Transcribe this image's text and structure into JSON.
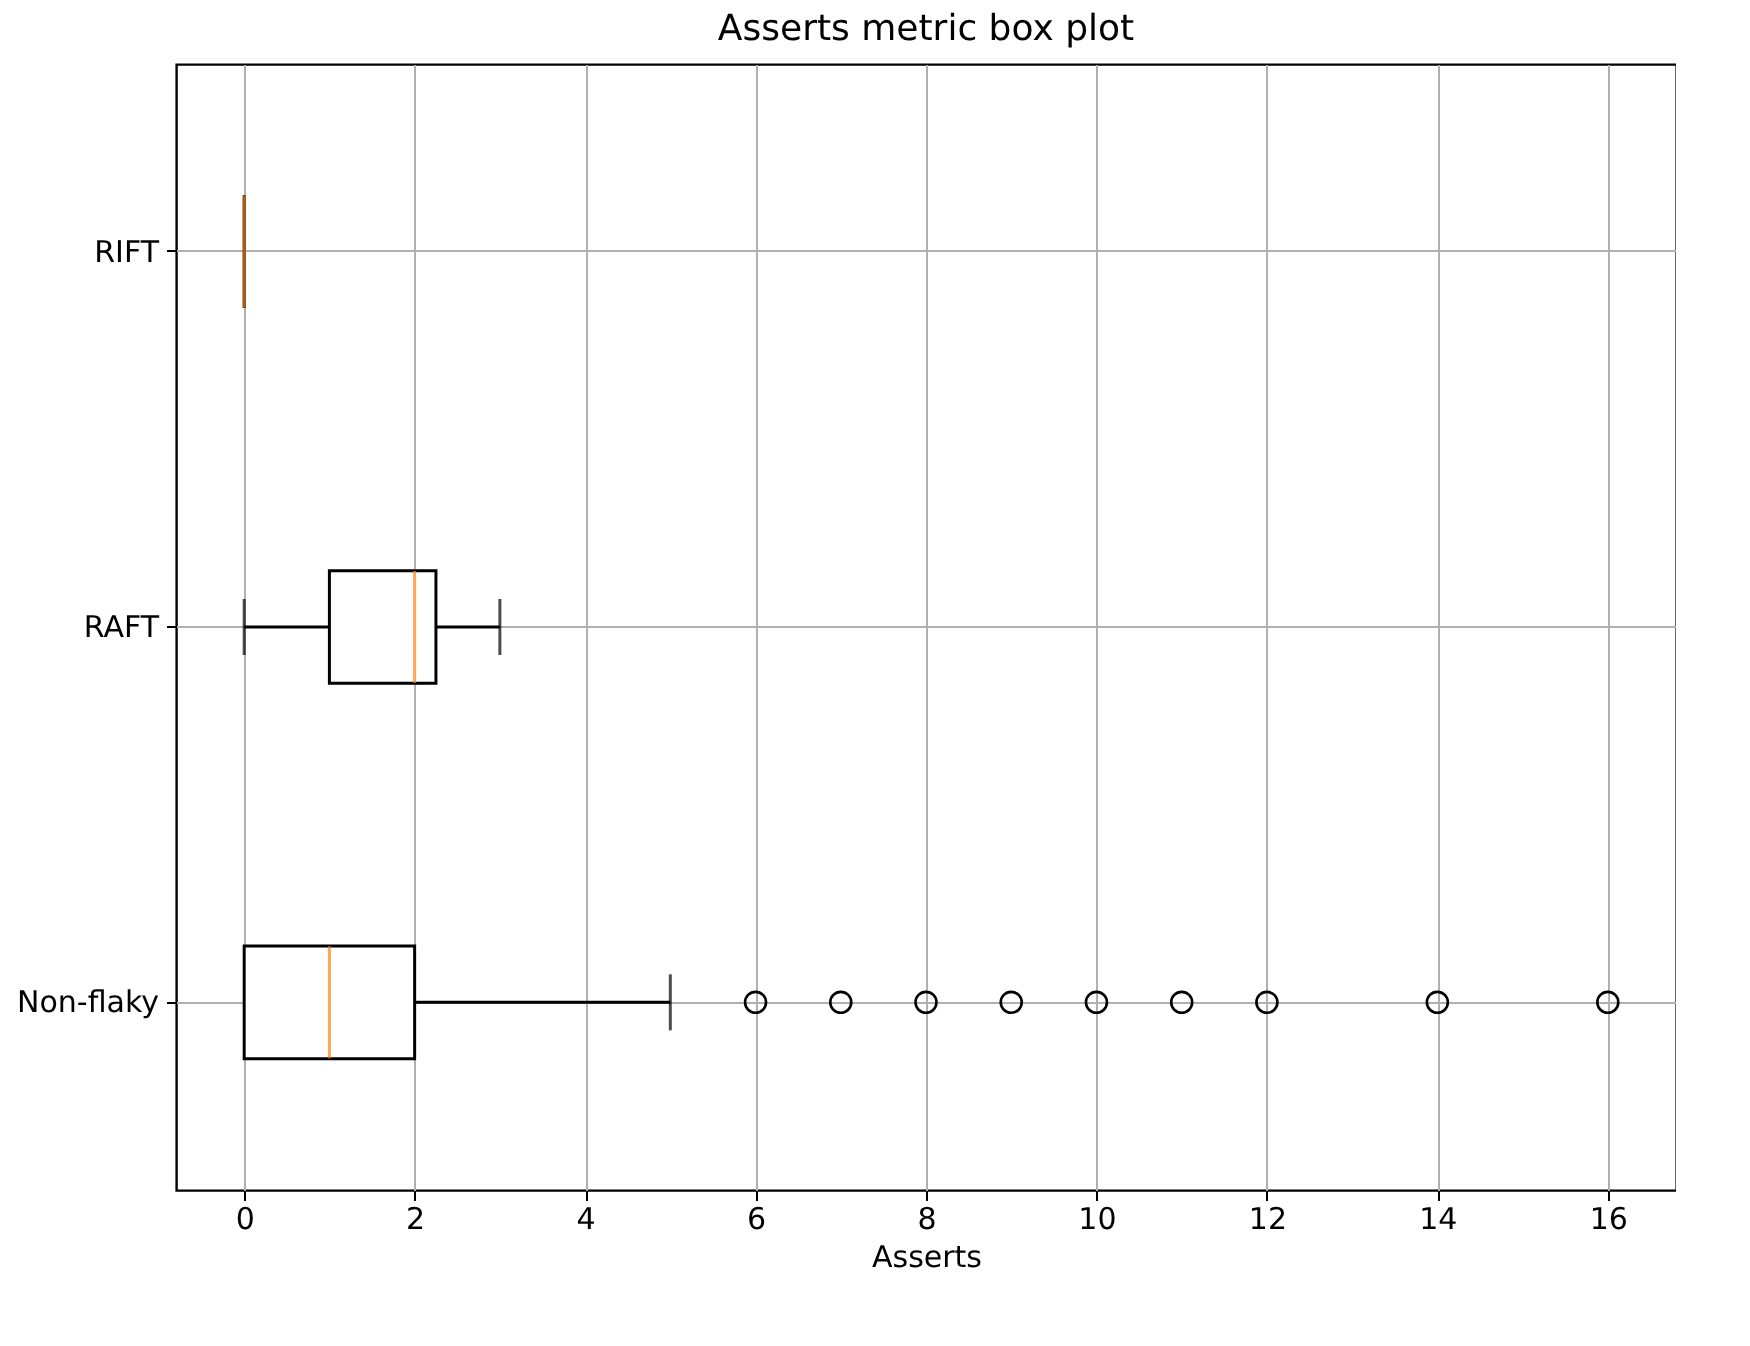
{
  "chart_data": {
    "type": "box",
    "orientation": "horizontal",
    "title": "Asserts metric box plot",
    "xlabel": "Asserts",
    "categories": [
      "RIFT",
      "RAFT",
      "Non-flaky"
    ],
    "boxes": [
      {
        "low": 0,
        "q1": 0,
        "median": 0,
        "q3": 0,
        "high": 0
      },
      {
        "low": 0,
        "q1": 1,
        "median": 2,
        "q3": 2.25,
        "high": 3
      },
      {
        "low": 0,
        "q1": 0,
        "median": 1,
        "q3": 2,
        "high": 5,
        "outliers": [
          6,
          7,
          8,
          9,
          10,
          11,
          12,
          14,
          16
        ]
      }
    ],
    "xlim": [
      -0.8,
      16.8
    ],
    "xticks": [
      0,
      2,
      4,
      6,
      8,
      10,
      12,
      14,
      16
    ],
    "grid": true,
    "marker": "circle"
  }
}
